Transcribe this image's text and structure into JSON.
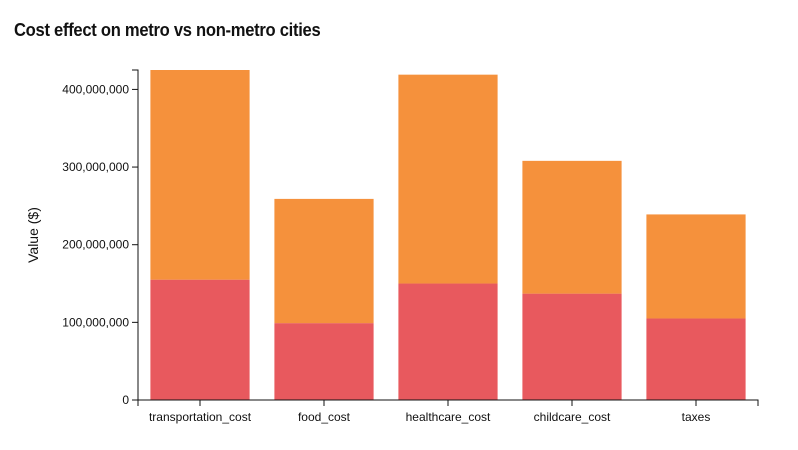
{
  "chart_data": {
    "type": "bar",
    "stacked": true,
    "title": "Cost effect on metro vs non-metro cities",
    "xlabel": "",
    "ylabel": "Value ($)",
    "categories": [
      "transportation_cost",
      "food_cost",
      "healthcare_cost",
      "childcare_cost",
      "taxes"
    ],
    "series": [
      {
        "color": "#e8595e",
        "values": [
          155000000,
          99000000,
          150000000,
          137000000,
          105000000
        ]
      },
      {
        "color": "#f5913c",
        "values": [
          270000000,
          160000000,
          269000000,
          171000000,
          134000000
        ]
      }
    ],
    "ylim": [
      0,
      425000000
    ],
    "yticks": [
      0,
      100000000,
      200000000,
      300000000,
      400000000
    ],
    "ytick_labels": [
      "0",
      "100,000,000",
      "200,000,000",
      "300,000,000",
      "400,000,000"
    ],
    "grid": false
  }
}
